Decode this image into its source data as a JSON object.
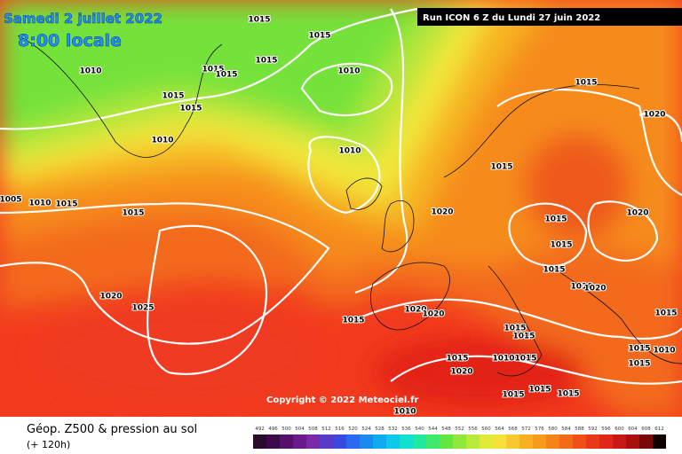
{
  "header": {
    "date": "Samedi 2 juillet 2022",
    "time": "8:00 locale",
    "run": "Run ICON 6 Z du Lundi 27 juin 2022"
  },
  "copyright": "Copyright © 2022 Meteociel.fr",
  "footer": {
    "title": "Géop. Z500 & pression au sol",
    "lead": "(+ 120h)"
  },
  "scale": [
    492,
    496,
    500,
    504,
    508,
    512,
    516,
    520,
    524,
    528,
    532,
    536,
    540,
    544,
    548,
    552,
    556,
    560,
    564,
    568,
    572,
    576,
    580,
    584,
    588,
    592,
    596,
    600,
    604,
    608,
    612
  ],
  "isobar_labels": [
    "1015",
    "1015",
    "1010",
    "1015",
    "1015",
    "1015",
    "1010",
    "1015",
    "1015",
    "1010",
    "1010",
    "1015",
    "1020",
    "1015",
    "1005",
    "1010",
    "1015",
    "1015",
    "1020",
    "1015",
    "1020",
    "1015",
    "1015",
    "1020",
    "1025",
    "1010",
    "1020",
    "1020",
    "1020",
    "1015",
    "1015",
    "1015",
    "1015",
    "1015",
    "1010",
    "1015",
    "1010",
    "1015",
    "1020",
    "1015",
    "1015",
    "1015",
    "1015",
    "1010"
  ]
}
